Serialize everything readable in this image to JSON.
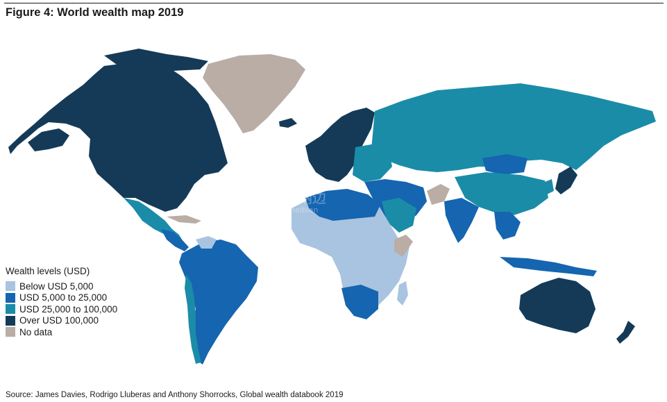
{
  "title": "Figure 4: World wealth map 2019",
  "legend": {
    "title": "Wealth levels (USD)",
    "items": [
      {
        "label": "Below USD 5,000",
        "color": "#a9c4e0"
      },
      {
        "label": "USD 5,000 to 25,000",
        "color": "#1565b0"
      },
      {
        "label": "USD 25,000 to 100,000",
        "color": "#1a8ca8"
      },
      {
        "label": "Over USD 100,000",
        "color": "#143a58"
      },
      {
        "label": "No data",
        "color": "#b9ada5"
      }
    ]
  },
  "watermark": {
    "cn": "海纳边",
    "latin": "haibian"
  },
  "source": "Source: James Davies, Rodrigo Lluberas and Anthony Shorrocks, Global wealth databook 2019"
}
